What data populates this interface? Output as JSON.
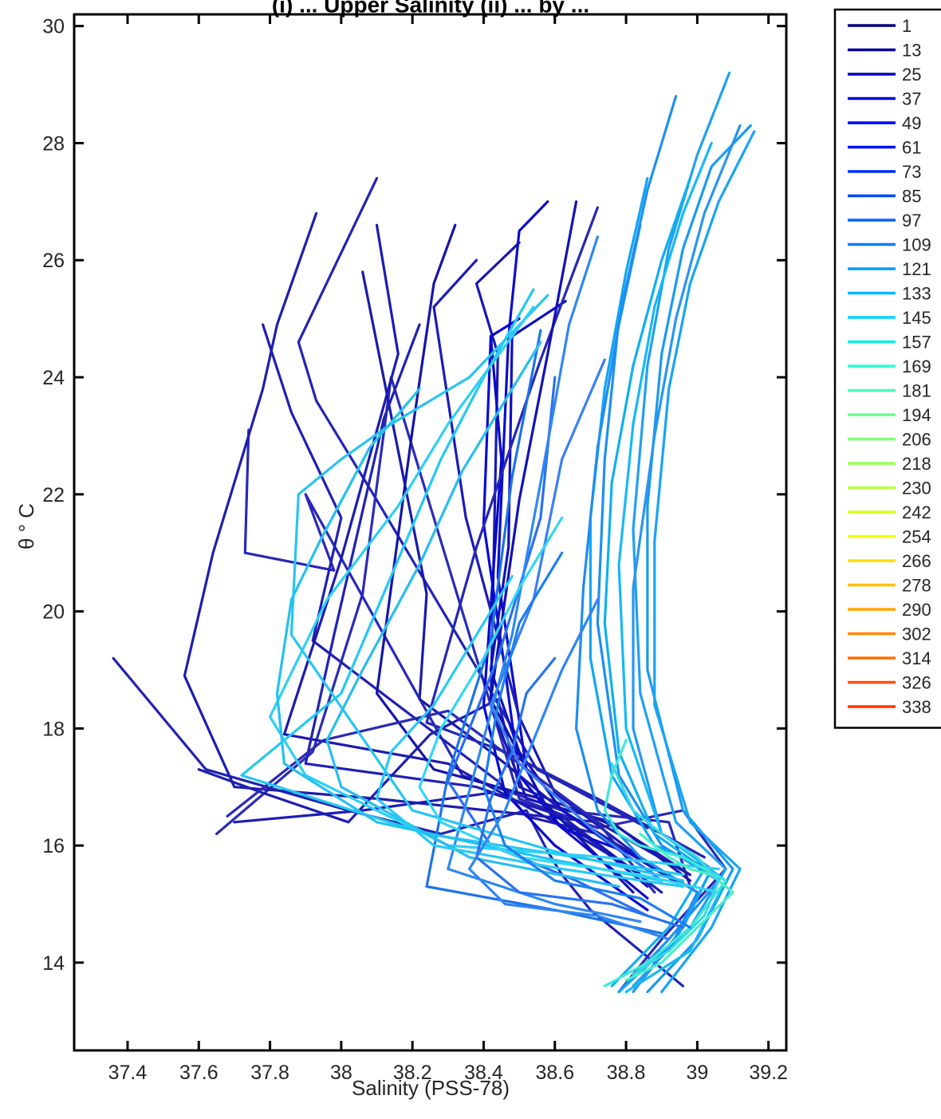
{
  "chart_data": {
    "type": "line",
    "title": "(i) ... Upper Salinity (ii) ... by ...",
    "xlabel": "Salinity (PSS-78)",
    "ylabel": "θ ° C",
    "xlim": [
      37.25,
      39.25
    ],
    "ylim": [
      12.5,
      30.2
    ],
    "x_ticks": [
      37.4,
      37.6,
      37.8,
      38.0,
      38.2,
      38.4,
      38.6,
      38.8,
      39.0,
      39.2
    ],
    "x_tick_labels": [
      "37.4",
      "37.6",
      "37.8",
      "38",
      "38.2",
      "38.4",
      "38.6",
      "38.8",
      "39",
      "39.2"
    ],
    "y_ticks": [
      14,
      16,
      18,
      20,
      22,
      24,
      26,
      28,
      30
    ],
    "y_tick_labels": [
      "14",
      "16",
      "18",
      "20",
      "22",
      "24",
      "26",
      "28",
      "30"
    ],
    "legend_position": "right-outside",
    "legend": [
      {
        "label": "1",
        "color": "#00007f"
      },
      {
        "label": "13",
        "color": "#00009c"
      },
      {
        "label": "25",
        "color": "#0000b9"
      },
      {
        "label": "37",
        "color": "#0000d6"
      },
      {
        "label": "49",
        "color": "#0000f3"
      },
      {
        "label": "61",
        "color": "#0010ff"
      },
      {
        "label": "73",
        "color": "#002cff"
      },
      {
        "label": "85",
        "color": "#0048ff"
      },
      {
        "label": "97",
        "color": "#0064ff"
      },
      {
        "label": "109",
        "color": "#0080ff"
      },
      {
        "label": "121",
        "color": "#009cff"
      },
      {
        "label": "133",
        "color": "#00b8ff"
      },
      {
        "label": "145",
        "color": "#00d4ff"
      },
      {
        "label": "157",
        "color": "#0ef0e9"
      },
      {
        "label": "169",
        "color": "#29ffce"
      },
      {
        "label": "181",
        "color": "#46ffb1"
      },
      {
        "label": "194",
        "color": "#63ff94"
      },
      {
        "label": "206",
        "color": "#80ff77"
      },
      {
        "label": "218",
        "color": "#9cff5a"
      },
      {
        "label": "230",
        "color": "#b9ff3d"
      },
      {
        "label": "242",
        "color": "#d6ff20"
      },
      {
        "label": "254",
        "color": "#f3f903"
      },
      {
        "label": "266",
        "color": "#ffdd00"
      },
      {
        "label": "278",
        "color": "#ffc100"
      },
      {
        "label": "290",
        "color": "#ffa500"
      },
      {
        "label": "302",
        "color": "#ff8900"
      },
      {
        "label": "314",
        "color": "#ff6d00"
      },
      {
        "label": "326",
        "color": "#ff5100"
      },
      {
        "label": "338",
        "color": "#ff3500"
      }
    ],
    "series": [
      {
        "color": "#2323b0",
        "x": [
          37.36,
          37.62,
          38.02,
          38.28,
          38.52,
          38.58,
          38.62,
          38.7,
          38.96
        ],
        "y": [
          19.2,
          17.3,
          16.6,
          16.2,
          16.6,
          15.9,
          15.5,
          14.9,
          13.6
        ]
      },
      {
        "color": "#2a2ab8",
        "x": [
          37.65,
          37.92,
          38.06,
          38.14,
          38.5,
          38.72,
          38.96,
          39.08,
          38.9,
          38.78
        ],
        "y": [
          16.2,
          17.6,
          20.3,
          24.0,
          16.8,
          16.3,
          16.6,
          15.6,
          14.4,
          13.5
        ]
      },
      {
        "color": "#2828b8",
        "x": [
          37.74,
          37.73,
          37.98,
          37.9,
          38.34,
          38.62,
          38.92,
          38.98
        ],
        "y": [
          23.1,
          21.0,
          20.7,
          22.0,
          17.2,
          16.6,
          16.4,
          15.3
        ]
      },
      {
        "color": "#1f1fb0",
        "x": [
          37.6,
          37.78,
          38.02,
          38.25,
          38.44,
          38.5,
          38.78,
          38.98
        ],
        "y": [
          17.3,
          16.9,
          16.4,
          17.9,
          18.5,
          17.0,
          16.3,
          15.5
        ]
      },
      {
        "color": "#2020b2",
        "x": [
          37.78,
          37.86,
          38.0,
          37.92,
          38.44,
          38.52,
          38.72,
          38.96
        ],
        "y": [
          24.9,
          23.4,
          21.6,
          19.5,
          17.1,
          16.5,
          16.2,
          15.3
        ]
      },
      {
        "color": "#1e1eae",
        "x": [
          37.93,
          37.82,
          37.78,
          37.64,
          37.56,
          37.7,
          38.1,
          38.72,
          38.98
        ],
        "y": [
          26.8,
          24.9,
          23.8,
          21.0,
          18.9,
          17.0,
          16.8,
          16.4,
          15.5
        ]
      },
      {
        "color": "#2424b4",
        "x": [
          38.1,
          37.88,
          37.93,
          38.1,
          38.55,
          38.86
        ],
        "y": [
          27.4,
          24.6,
          23.6,
          21.9,
          17.3,
          16.3
        ]
      },
      {
        "color": "#1a1aaa",
        "x": [
          38.06,
          38.24,
          38.22,
          38.42,
          38.62,
          38.86
        ],
        "y": [
          25.8,
          20.3,
          18.5,
          17.6,
          16.6,
          15.7
        ]
      },
      {
        "color": "#1b1bb0",
        "x": [
          38.1,
          38.16,
          38.0,
          37.84,
          38.3,
          38.6,
          38.82
        ],
        "y": [
          26.6,
          24.4,
          20.9,
          17.9,
          17.4,
          16.4,
          15.6
        ]
      },
      {
        "color": "#2121b4",
        "x": [
          38.22,
          38.12,
          37.98,
          37.9,
          38.38,
          38.62,
          38.9
        ],
        "y": [
          24.9,
          23.3,
          19.6,
          17.4,
          17.0,
          16.5,
          15.2
        ]
      },
      {
        "color": "#1515a8",
        "x": [
          38.32,
          38.26,
          38.2,
          38.1,
          38.26,
          38.56,
          38.82
        ],
        "y": [
          26.6,
          25.6,
          23.1,
          18.6,
          17.3,
          16.8,
          15.2
        ]
      },
      {
        "color": "#1818b0",
        "x": [
          38.5,
          38.38,
          38.44,
          38.42,
          38.52,
          38.76,
          38.98
        ],
        "y": [
          26.3,
          25.6,
          24.4,
          18.4,
          16.8,
          16.4,
          15.4
        ]
      },
      {
        "color": "#0d0dc8",
        "x": [
          38.58,
          38.5,
          38.47,
          38.44,
          38.52,
          38.6,
          38.86
        ],
        "y": [
          27.0,
          26.5,
          24.7,
          20.6,
          17.3,
          16.4,
          15.1
        ]
      },
      {
        "color": "#0808d0",
        "x": [
          38.5,
          38.42,
          38.45,
          38.4,
          38.46,
          38.6,
          38.86
        ],
        "y": [
          25.0,
          24.7,
          22.6,
          18.4,
          16.9,
          16.0,
          14.9
        ]
      },
      {
        "color": "#0a0ad4",
        "x": [
          38.42,
          38.4,
          38.46,
          38.5,
          38.62,
          38.84,
          39.0
        ],
        "y": [
          24.7,
          21.5,
          19.0,
          17.2,
          16.3,
          15.8,
          15.2
        ]
      },
      {
        "color": "#1010c0",
        "x": [
          38.63,
          38.48,
          38.47,
          38.42,
          38.5,
          38.62,
          38.88
        ],
        "y": [
          25.3,
          24.7,
          21.1,
          19.0,
          17.6,
          16.6,
          15.5
        ]
      },
      {
        "color": "#1c1cb8",
        "x": [
          38.38,
          38.26,
          38.35,
          38.5,
          38.6,
          38.86
        ],
        "y": [
          26.0,
          25.2,
          21.6,
          18.2,
          16.9,
          15.7
        ]
      },
      {
        "color": "#2626b6",
        "x": [
          38.72,
          38.56,
          38.38,
          38.24,
          38.46,
          38.72,
          39.02
        ],
        "y": [
          26.9,
          24.3,
          21.1,
          18.1,
          17.6,
          16.8,
          15.8
        ]
      },
      {
        "color": "#1212b6",
        "x": [
          38.66,
          38.58,
          38.5,
          38.42,
          38.58,
          38.84
        ],
        "y": [
          27.0,
          24.4,
          21.9,
          18.5,
          16.6,
          15.5
        ]
      },
      {
        "color": "#2a2ab6",
        "x": [
          37.68,
          37.95,
          38.3,
          38.5,
          38.72,
          38.88
        ],
        "y": [
          16.5,
          17.8,
          18.3,
          17.4,
          16.4,
          15.2
        ]
      },
      {
        "color": "#1c1cb4",
        "x": [
          37.7,
          38.06,
          38.42,
          38.62,
          38.86
        ],
        "y": [
          16.4,
          16.6,
          16.9,
          16.5,
          15.3
        ]
      },
      {
        "color": "#2c6ff0",
        "x": [
          38.6,
          38.56,
          38.44,
          38.3,
          38.42,
          38.66,
          38.86
        ],
        "y": [
          24.0,
          21.6,
          19.2,
          17.1,
          16.0,
          15.4,
          14.8
        ]
      },
      {
        "color": "#3a7ff5",
        "x": [
          38.74,
          38.62,
          38.54,
          38.42,
          38.5,
          38.72,
          38.9
        ],
        "y": [
          24.3,
          22.6,
          20.2,
          18.4,
          17.4,
          16.2,
          15.4
        ]
      },
      {
        "color": "#2f88f0",
        "x": [
          38.72,
          38.64,
          38.56,
          38.48,
          38.3,
          38.6,
          38.84
        ],
        "y": [
          26.4,
          24.9,
          22.2,
          19.6,
          15.6,
          15.0,
          14.7
        ]
      },
      {
        "color": "#1e73e6",
        "x": [
          38.56,
          38.48,
          38.42,
          38.3,
          38.24,
          38.6,
          38.9
        ],
        "y": [
          24.8,
          22.3,
          19.5,
          17.2,
          15.3,
          14.9,
          14.5
        ]
      },
      {
        "color": "#1f8fef",
        "x": [
          38.94,
          38.86,
          38.78,
          38.74,
          38.72,
          38.78,
          38.9,
          39.06,
          38.92,
          38.78
        ],
        "y": [
          28.8,
          27.2,
          25.0,
          22.6,
          19.8,
          17.2,
          16.0,
          15.4,
          14.4,
          13.5
        ]
      },
      {
        "color": "#21a0f2",
        "x": [
          39.09,
          39.0,
          38.92,
          38.86,
          38.82,
          38.84,
          38.94,
          39.08,
          38.98,
          38.82
        ],
        "y": [
          29.2,
          27.8,
          26.2,
          24.2,
          21.4,
          18.6,
          16.4,
          15.6,
          14.6,
          13.6
        ]
      },
      {
        "color": "#1a9af0",
        "x": [
          39.15,
          39.04,
          38.96,
          38.9,
          38.86,
          38.86,
          38.96,
          39.1,
          39.0,
          38.86
        ],
        "y": [
          28.3,
          27.6,
          26.2,
          24.4,
          21.8,
          19.0,
          16.6,
          15.6,
          14.4,
          13.5
        ]
      },
      {
        "color": "#18a4f2",
        "x": [
          39.16,
          39.06,
          38.98,
          38.92,
          38.88,
          38.88,
          38.98,
          39.12,
          39.04,
          38.9
        ],
        "y": [
          28.2,
          27.0,
          25.6,
          23.8,
          21.2,
          18.4,
          16.4,
          15.6,
          14.6,
          13.5
        ]
      },
      {
        "color": "#2a95ef",
        "x": [
          39.12,
          39.02,
          38.94,
          38.88,
          38.82,
          38.82,
          38.9,
          39.04,
          38.96,
          38.82
        ],
        "y": [
          28.3,
          26.8,
          25.0,
          23.0,
          20.4,
          18.0,
          16.2,
          15.6,
          14.6,
          13.5
        ]
      },
      {
        "color": "#17b8f5",
        "x": [
          39.04,
          38.96,
          38.88,
          38.82,
          38.78,
          38.8,
          38.9,
          39.08,
          38.98,
          38.8
        ],
        "y": [
          28.0,
          26.8,
          25.2,
          23.2,
          20.8,
          18.0,
          16.2,
          15.4,
          14.2,
          13.5
        ]
      },
      {
        "color": "#0fb0f0",
        "x": [
          38.98,
          38.9,
          38.82,
          38.76,
          38.74,
          38.78,
          38.88,
          39.02,
          38.92,
          38.76
        ],
        "y": [
          27.4,
          26.0,
          24.2,
          22.2,
          19.8,
          17.6,
          16.2,
          15.6,
          14.6,
          13.6
        ]
      },
      {
        "color": "#0fa6f6",
        "x": [
          38.86,
          38.8,
          38.74,
          38.7,
          38.7,
          38.76,
          38.88,
          39.04,
          38.94,
          38.78
        ],
        "y": [
          27.4,
          25.8,
          23.8,
          21.6,
          19.2,
          17.2,
          16.0,
          15.6,
          14.4,
          13.5
        ]
      },
      {
        "color": "#1f8df0",
        "x": [
          38.84,
          38.78,
          38.72,
          38.68,
          38.66,
          38.72,
          38.84,
          39.0,
          38.92
        ],
        "y": [
          26.6,
          24.9,
          22.8,
          20.4,
          18.0,
          16.6,
          15.8,
          15.2,
          14.2
        ]
      },
      {
        "color": "#24c8f2",
        "x": [
          38.54,
          38.4,
          38.28,
          38.14,
          38.0,
          37.8,
          37.72,
          38.24,
          38.66,
          38.96
        ],
        "y": [
          25.5,
          24.0,
          22.6,
          20.6,
          18.6,
          17.6,
          17.2,
          16.2,
          15.8,
          15.5
        ]
      },
      {
        "color": "#28c4f0",
        "x": [
          38.58,
          38.36,
          38.14,
          38.0,
          37.88,
          37.86,
          38.2,
          38.6,
          38.96
        ],
        "y": [
          25.4,
          24.0,
          23.2,
          22.6,
          22.0,
          19.6,
          16.6,
          15.9,
          15.4
        ]
      },
      {
        "color": "#2dcff4",
        "x": [
          38.54,
          38.42,
          38.3,
          38.16,
          37.96,
          37.8,
          37.9,
          38.3,
          38.74,
          39.06
        ],
        "y": [
          25.2,
          24.2,
          23.2,
          21.8,
          20.2,
          18.2,
          17.2,
          16.0,
          15.8,
          15.6
        ]
      },
      {
        "color": "#28bdf0",
        "x": [
          38.56,
          38.46,
          38.34,
          38.22,
          38.06,
          37.96,
          38.0,
          38.36,
          38.78
        ],
        "y": [
          24.6,
          23.6,
          22.4,
          20.8,
          19.0,
          17.8,
          17.0,
          15.8,
          15.3
        ]
      },
      {
        "color": "#22c2ef",
        "x": [
          38.22,
          38.08,
          37.94,
          37.86,
          37.82,
          37.84,
          38.1,
          38.56,
          38.9
        ],
        "y": [
          23.8,
          22.8,
          21.2,
          20.2,
          18.6,
          17.4,
          16.4,
          15.8,
          15.4
        ]
      },
      {
        "color": "#31d6f5",
        "x": [
          38.62,
          38.5,
          38.4,
          38.28,
          38.22,
          38.28,
          38.5,
          38.84,
          39.06
        ],
        "y": [
          21.6,
          20.4,
          19.2,
          18.0,
          17.0,
          16.4,
          15.8,
          15.5,
          15.2
        ]
      },
      {
        "color": "#2ac9f2",
        "x": [
          38.48,
          38.36,
          38.26,
          38.14,
          38.1,
          38.26,
          38.62,
          38.96
        ],
        "y": [
          20.6,
          19.4,
          18.4,
          17.6,
          16.8,
          16.0,
          15.6,
          15.3
        ]
      },
      {
        "color": "#3ee8d9",
        "x": [
          38.8,
          38.76,
          38.74,
          38.78,
          38.84,
          38.96,
          39.08,
          38.98,
          38.86,
          38.74
        ],
        "y": [
          17.8,
          17.2,
          16.6,
          16.2,
          16.0,
          15.8,
          15.4,
          14.6,
          14.0,
          13.6
        ]
      },
      {
        "color": "#49f0c6",
        "x": [
          38.84,
          38.88,
          38.92,
          38.98,
          39.04,
          39.1,
          39.0,
          38.9,
          38.8
        ],
        "y": [
          16.2,
          16.0,
          15.8,
          15.6,
          15.5,
          15.2,
          14.6,
          14.0,
          13.7
        ]
      },
      {
        "color": "#3ad8e4",
        "x": [
          38.76,
          38.82,
          38.9,
          39.0,
          39.06,
          39.02,
          38.92,
          38.82
        ],
        "y": [
          17.4,
          16.6,
          16.2,
          15.8,
          15.4,
          14.8,
          14.2,
          13.8
        ]
      },
      {
        "color": "#1c7ff0",
        "x": [
          38.62,
          38.5,
          38.44,
          38.4,
          38.46,
          38.6,
          38.84,
          38.98
        ],
        "y": [
          21.0,
          19.8,
          18.4,
          17.0,
          16.0,
          15.4,
          15.1,
          14.6
        ]
      },
      {
        "color": "#2873f0",
        "x": [
          38.6,
          38.52,
          38.48,
          38.42,
          38.38,
          38.5,
          38.76,
          38.96
        ],
        "y": [
          19.2,
          18.6,
          17.6,
          16.8,
          15.8,
          15.2,
          15.0,
          14.6
        ]
      },
      {
        "color": "#3085f4",
        "x": [
          38.72,
          38.62,
          38.54,
          38.46,
          38.36,
          38.46,
          38.72,
          38.92
        ],
        "y": [
          20.2,
          19.0,
          17.8,
          16.6,
          15.6,
          15.0,
          14.8,
          14.4
        ]
      }
    ]
  }
}
